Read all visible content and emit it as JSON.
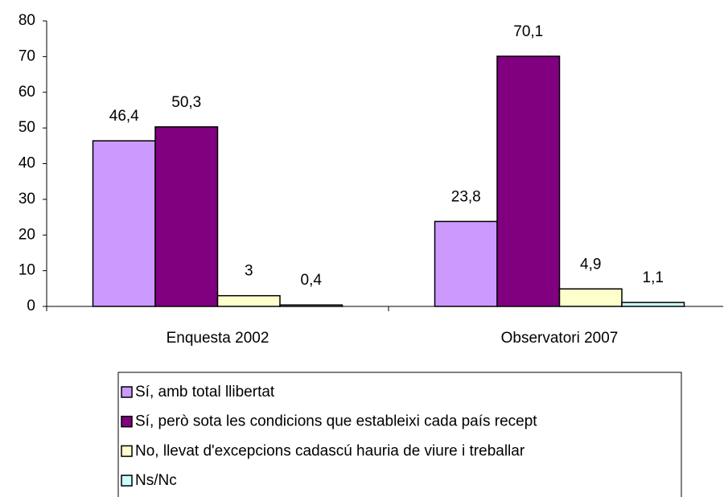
{
  "chart_data": {
    "type": "bar",
    "categories": [
      "Enquesta 2002",
      "Observatori 2007"
    ],
    "series": [
      {
        "name": "Sí, amb total llibertat",
        "color": "#cc99ff",
        "values": [
          46.4,
          23.8
        ],
        "value_labels": [
          "46,4",
          "23,8"
        ]
      },
      {
        "name": "Sí, però sota les condicions que estableixi cada país recept",
        "color": "#800080",
        "values": [
          50.3,
          70.1
        ],
        "value_labels": [
          "50,3",
          "70,1"
        ]
      },
      {
        "name": "No, llevat d'excepcions cadascú hauria de viure i treballar",
        "color": "#ffffcc",
        "values": [
          3,
          4.9
        ],
        "value_labels": [
          "3",
          "4,9"
        ]
      },
      {
        "name": "Ns/Nc",
        "color": "#ccffff",
        "values": [
          0.4,
          1.1
        ],
        "value_labels": [
          "0,4",
          "1,1"
        ]
      }
    ],
    "ylim": [
      0,
      80
    ],
    "yticks": [
      0,
      10,
      20,
      30,
      40,
      50,
      60,
      70,
      80
    ],
    "legend": "bottom"
  }
}
